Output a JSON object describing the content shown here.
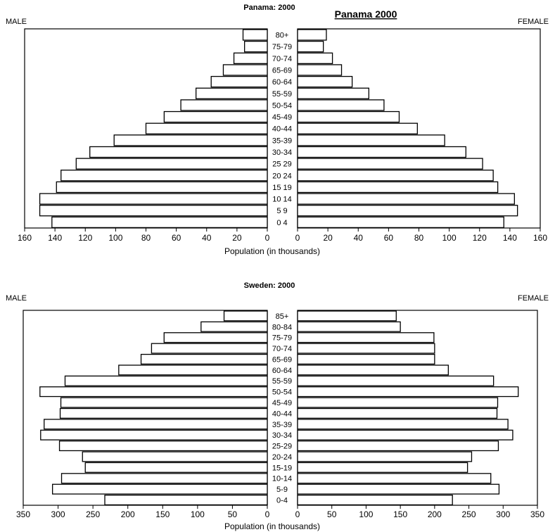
{
  "chart_data": [
    {
      "type": "bar",
      "title": "Panama: 2000",
      "heading": "Panama 2000",
      "left_label": "MALE",
      "right_label": "FEMALE",
      "xlabel": "Population (in thousands)",
      "xlim": [
        0,
        160
      ],
      "ticks": [
        0,
        20,
        40,
        60,
        80,
        100,
        120,
        140,
        160
      ],
      "categories": [
        "0 4",
        "5 9",
        "10 14",
        "15 19",
        "20 24",
        "25 29",
        "30-34",
        "35-39",
        "40-44",
        "45-49",
        "50-54",
        "55-59",
        "60-64",
        "65-69",
        "70-74",
        "75-79",
        "80+"
      ],
      "series": [
        {
          "name": "MALE",
          "values": [
            142,
            150,
            150,
            139,
            136,
            126,
            117,
            101,
            80,
            68,
            57,
            47,
            37,
            29,
            22,
            15,
            16
          ]
        },
        {
          "name": "FEMALE",
          "values": [
            136,
            145,
            143,
            132,
            129,
            122,
            111,
            97,
            79,
            67,
            57,
            47,
            36,
            29,
            23,
            17,
            19
          ]
        }
      ]
    },
    {
      "type": "bar",
      "title": "Sweden: 2000",
      "left_label": "MALE",
      "right_label": "FEMALE",
      "xlabel": "Population (in thousands)",
      "xlim": [
        0,
        350
      ],
      "ticks": [
        0,
        50,
        100,
        150,
        200,
        250,
        300,
        350
      ],
      "categories": [
        "0-4",
        "5-9",
        "10-14",
        "15-19",
        "20-24",
        "25-29",
        "30-34",
        "35-39",
        "40-44",
        "45-49",
        "50-54",
        "55-59",
        "60-64",
        "65-69",
        "70-74",
        "75-79",
        "80-84",
        "85+"
      ],
      "series": [
        {
          "name": "MALE",
          "values": [
            233,
            308,
            295,
            261,
            265,
            298,
            325,
            320,
            297,
            296,
            326,
            290,
            213,
            181,
            166,
            148,
            95,
            62
          ]
        },
        {
          "name": "FEMALE",
          "values": [
            226,
            294,
            282,
            248,
            254,
            293,
            314,
            307,
            291,
            292,
            322,
            286,
            220,
            200,
            200,
            199,
            150,
            144
          ]
        }
      ]
    }
  ]
}
